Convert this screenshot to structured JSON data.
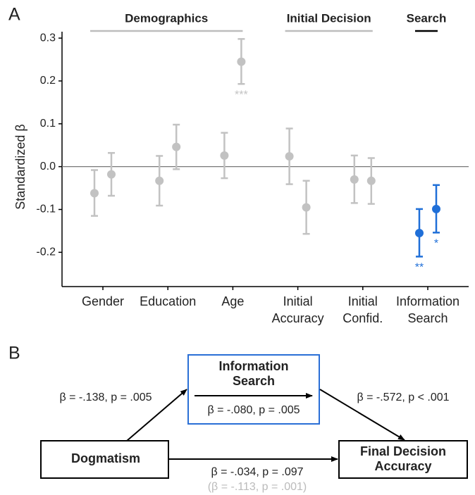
{
  "chart_data": {
    "type": "dot-errorbar",
    "panel_label": "A",
    "ylabel": "Standardized β",
    "categories": [
      "Gender",
      "Education",
      "Age",
      "Initial Accuracy",
      "Initial Confid.",
      "Information Search"
    ],
    "groups": [
      {
        "label": "Demographics",
        "color": "#bdbdbd",
        "span": [
          0,
          2
        ]
      },
      {
        "label": "Initial Decision",
        "color": "#bdbdbd",
        "span": [
          3,
          4
        ]
      },
      {
        "label": "Search",
        "color": "#000000",
        "span": [
          5,
          5
        ]
      }
    ],
    "series": [
      {
        "values": [
          -0.062,
          -0.033,
          0.026,
          0.024,
          -0.03,
          -0.155
        ],
        "ci_low": [
          -0.115,
          -0.091,
          -0.027,
          -0.041,
          -0.085,
          -0.21
        ],
        "ci_high": [
          -0.008,
          0.025,
          0.079,
          0.089,
          0.026,
          -0.099
        ],
        "colors": [
          "#c2c2c2",
          "#c2c2c2",
          "#c2c2c2",
          "#c2c2c2",
          "#c2c2c2",
          "#1f6fd8"
        ],
        "significance": [
          null,
          null,
          null,
          null,
          null,
          "**"
        ]
      },
      {
        "values": [
          -0.018,
          0.046,
          0.245,
          -0.095,
          -0.033,
          -0.099
        ],
        "ci_low": [
          -0.068,
          -0.006,
          0.193,
          -0.157,
          -0.087,
          -0.154
        ],
        "ci_high": [
          0.032,
          0.098,
          0.298,
          -0.033,
          0.02,
          -0.043
        ],
        "colors": [
          "#c2c2c2",
          "#c2c2c2",
          "#c2c2c2",
          "#c2c2c2",
          "#c2c2c2",
          "#1f6fd8"
        ],
        "significance": [
          null,
          null,
          "***",
          null,
          null,
          "*"
        ]
      }
    ],
    "ylim": [
      -0.28,
      0.315
    ],
    "yticks": [
      -0.2,
      -0.1,
      {
        "value": 0,
        "label": "0.0"
      },
      0.1,
      0.2,
      0.3
    ],
    "hline": 0
  },
  "diagram": {
    "panel_label": "B",
    "nodes": [
      {
        "lines": [
          "Dogmatism"
        ]
      },
      {
        "lines": [
          "Information",
          "Search"
        ]
      },
      {
        "lines": [
          "Final Decision",
          "Accuracy"
        ]
      }
    ],
    "edges": [
      {
        "label": "β = -.138, p = .005"
      },
      {
        "label": "β = -.080, p = .005"
      },
      {
        "label": "β = -.572, p < .001"
      },
      {
        "label": "β = -.034, p = .097",
        "sublabel": "(β = -.113, p = .001)"
      }
    ]
  }
}
